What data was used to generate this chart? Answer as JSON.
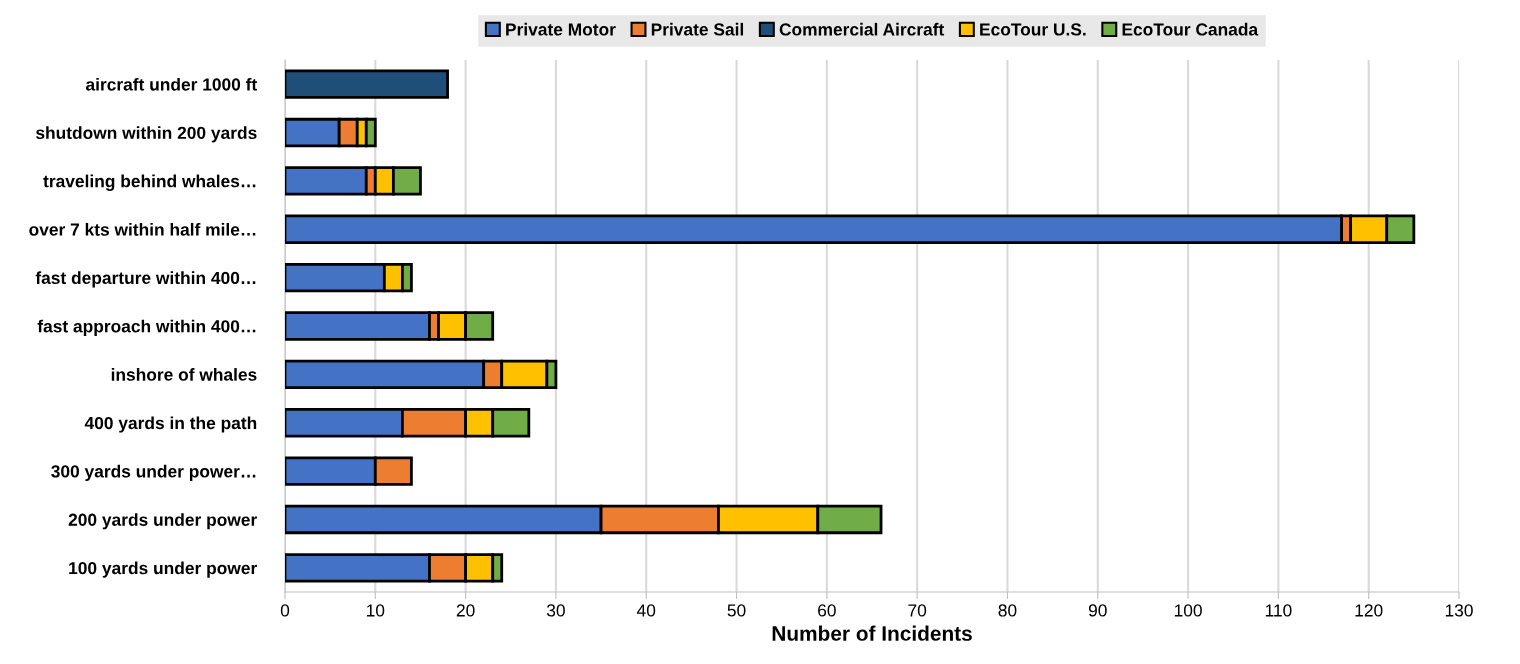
{
  "chart_data": {
    "type": "bar",
    "orientation": "horizontal",
    "stacked": true,
    "categories": [
      "aircraft under 1000 ft",
      "shutdown within 200 yards",
      "traveling behind whales…",
      "over 7 kts within half mile…",
      "fast departure within 400…",
      "fast approach within 400…",
      "inshore of whales",
      "400 yards in the path",
      "300 yards under power…",
      "200 yards under power",
      "100 yards under power"
    ],
    "series": [
      {
        "name": "Private Motor",
        "color": "#4472c4",
        "values": [
          null,
          6,
          9,
          117,
          11,
          16,
          22,
          13,
          10,
          35,
          16
        ]
      },
      {
        "name": "Private Sail",
        "color": "#ed7d31",
        "values": [
          null,
          2,
          1,
          1,
          null,
          1,
          2,
          7,
          4,
          13,
          4
        ]
      },
      {
        "name": "Commercial Aircraft",
        "color": "#1f4e79",
        "values": [
          18,
          null,
          null,
          null,
          null,
          null,
          null,
          null,
          null,
          null,
          null
        ]
      },
      {
        "name": "EcoTour U.S.",
        "color": "#ffc000",
        "values": [
          null,
          1,
          2,
          4,
          2,
          3,
          5,
          3,
          null,
          11,
          3
        ]
      },
      {
        "name": "EcoTour Canada",
        "color": "#70ad47",
        "values": [
          null,
          1,
          3,
          3,
          1,
          3,
          1,
          4,
          null,
          7,
          1
        ]
      }
    ],
    "xlabel": "Number of Incidents",
    "xlim": [
      0,
      130
    ],
    "xticks": [
      0,
      10,
      20,
      30,
      40,
      50,
      60,
      70,
      80,
      90,
      100,
      110,
      120,
      130
    ],
    "grid": "x",
    "legend": "top"
  }
}
